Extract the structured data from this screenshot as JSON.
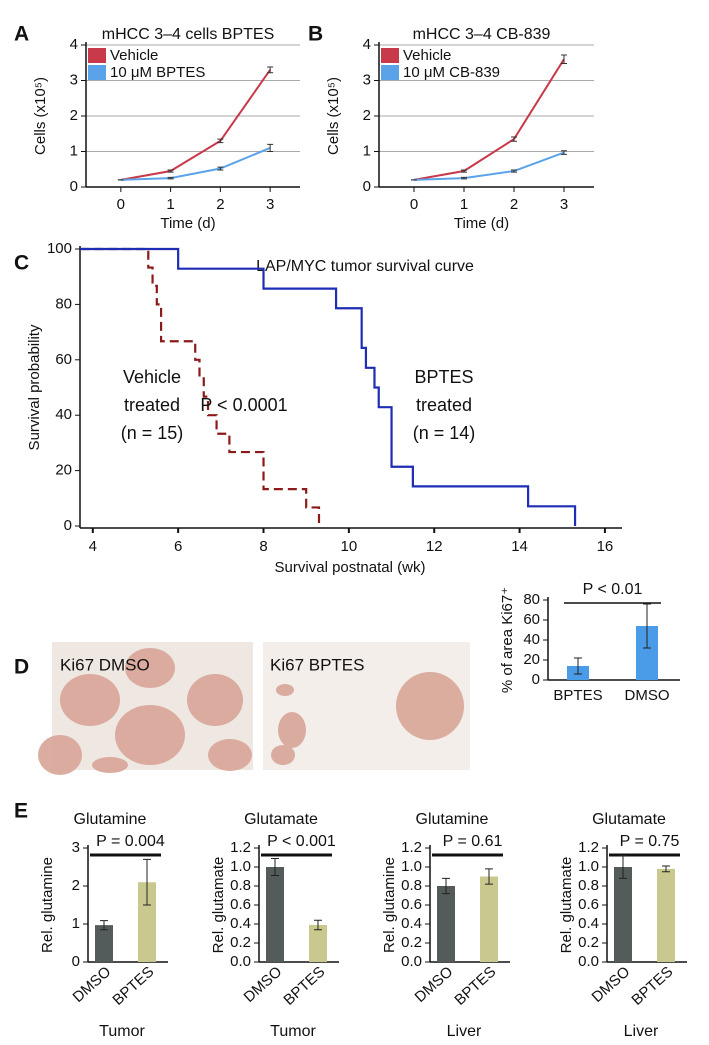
{
  "chart_data": [
    {
      "type": "line",
      "panel": "A",
      "title": "mHCC 3–4 cells BPTES",
      "ylabel": "Cells (x10⁵)",
      "xlabel": "Time (d)",
      "x": [
        0,
        1,
        2,
        3
      ],
      "xlim": [
        -0.7,
        3.6
      ],
      "xticks": [
        0,
        1,
        2,
        3
      ],
      "ylim": [
        0,
        4
      ],
      "yticks": [
        0,
        1,
        2,
        3,
        4
      ],
      "grid": true,
      "legend": "upper left",
      "series": [
        {
          "name": "Vehicle",
          "color": "#c8394a",
          "values": [
            0.2,
            0.45,
            1.3,
            3.3
          ],
          "errors": [
            0,
            0.03,
            0.05,
            0.08
          ]
        },
        {
          "name": "10 μM BPTES",
          "color": "#5ba3e8",
          "values": [
            0.2,
            0.25,
            0.52,
            1.1
          ],
          "errors": [
            0,
            0.02,
            0.04,
            0.1
          ]
        }
      ]
    },
    {
      "type": "line",
      "panel": "B",
      "title": "mHCC 3–4 CB-839",
      "ylabel": "Cells (x10⁵)",
      "xlabel": "Time (d)",
      "x": [
        0,
        1,
        2,
        3
      ],
      "xlim": [
        -0.7,
        3.6
      ],
      "xticks": [
        0,
        1,
        2,
        3
      ],
      "ylim": [
        0,
        4
      ],
      "yticks": [
        0,
        1,
        2,
        3,
        4
      ],
      "grid": true,
      "legend": "upper left",
      "series": [
        {
          "name": "Vehicle",
          "color": "#c8394a",
          "values": [
            0.2,
            0.45,
            1.35,
            3.6
          ],
          "errors": [
            0,
            0.03,
            0.06,
            0.12
          ]
        },
        {
          "name": "10 μM CB-839",
          "color": "#5ba3e8",
          "values": [
            0.2,
            0.25,
            0.45,
            0.97
          ],
          "errors": [
            0,
            0.02,
            0.03,
            0.05
          ]
        }
      ]
    },
    {
      "type": "step",
      "panel": "C",
      "title": "LAP/MYC tumor survival curve",
      "ylabel": "Survival probability",
      "xlabel": "Survival postnatal (wk)",
      "xlim": [
        3.7,
        16.4
      ],
      "xticks": [
        4,
        6,
        8,
        10,
        12,
        14,
        16
      ],
      "ylim": [
        0,
        100
      ],
      "yticks": [
        0,
        20,
        40,
        60,
        80,
        100
      ],
      "series": [
        {
          "color": "#8b1a1a",
          "dashed": true,
          "x": [
            3.7,
            5.3,
            5.4,
            5.5,
            5.6,
            6.4,
            6.5,
            6.6,
            6.7,
            6.9,
            7.2,
            8.0,
            9.0,
            9.3
          ],
          "values": [
            100,
            93.3,
            86.7,
            80,
            66.7,
            60,
            53.3,
            46.7,
            40,
            33.3,
            26.7,
            13.3,
            6.7,
            0
          ]
        },
        {
          "color": "#1f2db5",
          "dashed": false,
          "x": [
            3.7,
            6.0,
            8.0,
            9.7,
            10.3,
            10.4,
            10.6,
            10.7,
            11.0,
            11.5,
            14.2,
            15.3
          ],
          "values": [
            100,
            92.9,
            85.7,
            78.6,
            64.3,
            57.1,
            50,
            42.9,
            21.4,
            14.3,
            7.1,
            0
          ]
        }
      ],
      "annotations": [
        {
          "text": [
            "Vehicle",
            "treated",
            "(n = 15)"
          ],
          "color": "#8b1a1a"
        },
        {
          "text": [
            "BPTES",
            "treated",
            "(n = 14)"
          ],
          "color": "#1f2db5"
        },
        {
          "text": [
            "P < 0.0001"
          ],
          "color": "#111111"
        }
      ]
    },
    {
      "type": "bar",
      "panel": "D",
      "images": [
        "Ki67 DMSO",
        "Ki67 BPTES"
      ],
      "ylabel": "% of area Ki67⁺",
      "categories": [
        "BPTES",
        "DMSO"
      ],
      "values": [
        14,
        54
      ],
      "errors": [
        8,
        22
      ],
      "colors": [
        "#4a9be8",
        "#4a9be8"
      ],
      "ylim": [
        0,
        80
      ],
      "yticks": [
        0,
        20,
        40,
        60,
        80
      ],
      "annotation": "P < 0.01"
    },
    {
      "type": "bar",
      "panel": "E",
      "title": "Glutamine",
      "ylabel": "Rel. glutamine",
      "xlabel": "Tumor",
      "categories": [
        "DMSO",
        "BPTES"
      ],
      "values": [
        0.97,
        2.1
      ],
      "errors": [
        0.12,
        0.6
      ],
      "colors": [
        "#535c5b",
        "#c9c98f"
      ],
      "ylim": [
        0,
        3
      ],
      "yticks": [
        0,
        1,
        2,
        3
      ],
      "annotation": "P = 0.004"
    },
    {
      "type": "bar",
      "title": "Glutamate",
      "ylabel": "Rel. glutamate",
      "xlabel": "Tumor",
      "categories": [
        "DMSO",
        "BPTES"
      ],
      "values": [
        1.0,
        0.39
      ],
      "errors": [
        0.09,
        0.05
      ],
      "colors": [
        "#535c5b",
        "#c9c98f"
      ],
      "ylim": [
        0,
        1.2
      ],
      "yticks": [
        {
          "value": 0,
          "label": "0.0"
        },
        0.2,
        0.4,
        0.6,
        0.8,
        {
          "value": 1,
          "label": "1.0"
        },
        1.2
      ],
      "annotation": "P < 0.001"
    },
    {
      "type": "bar",
      "title": "Glutamine",
      "ylabel": "Rel. glutamine",
      "xlabel": "Liver",
      "categories": [
        "DMSO",
        "BPTES"
      ],
      "values": [
        0.8,
        0.9
      ],
      "errors": [
        0.08,
        0.08
      ],
      "colors": [
        "#535c5b",
        "#c9c98f"
      ],
      "ylim": [
        0,
        1.2
      ],
      "yticks": [
        {
          "value": 0,
          "label": "0.0"
        },
        0.2,
        0.4,
        0.6,
        0.8,
        {
          "value": 1,
          "label": "1.0"
        },
        1.2
      ],
      "annotation": "P = 0.61"
    },
    {
      "type": "bar",
      "title": "Glutamate",
      "ylabel": "Rel. glutamate",
      "xlabel": "Liver",
      "categories": [
        "DMSO",
        "BPTES"
      ],
      "values": [
        1.0,
        0.98
      ],
      "errors": [
        0.12,
        0.03
      ],
      "colors": [
        "#535c5b",
        "#c9c98f"
      ],
      "ylim": [
        0,
        1.2
      ],
      "yticks": [
        {
          "value": 0,
          "label": "0.0"
        },
        0.2,
        0.4,
        0.6,
        0.8,
        {
          "value": 1,
          "label": "1.0"
        },
        1.2
      ],
      "annotation": "P = 0.75"
    }
  ]
}
